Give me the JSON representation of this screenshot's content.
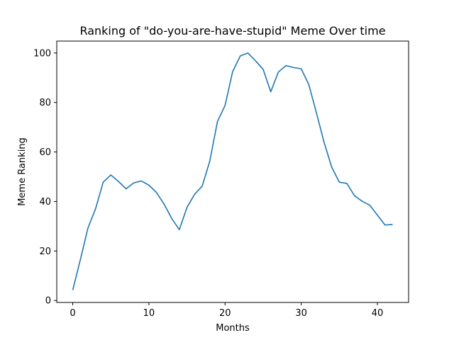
{
  "chart_data": {
    "type": "line",
    "title": "Ranking of \"do-you-are-have-stupid\" Meme Over time",
    "xlabel": "Months",
    "ylabel": "Meme Ranking",
    "xlim": [
      -2.1,
      44.1
    ],
    "ylim": [
      -0.8,
      104.8
    ],
    "xticks": [
      0,
      10,
      20,
      30,
      40
    ],
    "yticks": [
      0,
      20,
      40,
      60,
      80,
      100
    ],
    "grid": false,
    "line_color": "#1f77b4",
    "series": [
      {
        "x": [
          0,
          1,
          2,
          3,
          4,
          5,
          6,
          7,
          8,
          9,
          10,
          11,
          12,
          13,
          14,
          15,
          16,
          17,
          18,
          19,
          20,
          21,
          22,
          23,
          24,
          25,
          26,
          27,
          28,
          29,
          30,
          31,
          32,
          33,
          34,
          35,
          36,
          37,
          38,
          39,
          40,
          41,
          42
        ],
        "values": [
          4.2,
          16.5,
          29.3,
          37.1,
          47.8,
          50.7,
          48.1,
          45.1,
          47.5,
          48.3,
          46.6,
          43.6,
          38.9,
          33.1,
          28.6,
          37.6,
          42.9,
          46.2,
          56.4,
          72.3,
          78.8,
          92.5,
          98.8,
          100,
          96.8,
          93.4,
          84.3,
          92.3,
          94.9,
          94.1,
          93.6,
          87.2,
          75.8,
          63.9,
          53.9,
          47.8,
          47.3,
          42.3,
          40.1,
          38.5,
          34.5,
          30.5,
          30.7
        ]
      }
    ]
  }
}
